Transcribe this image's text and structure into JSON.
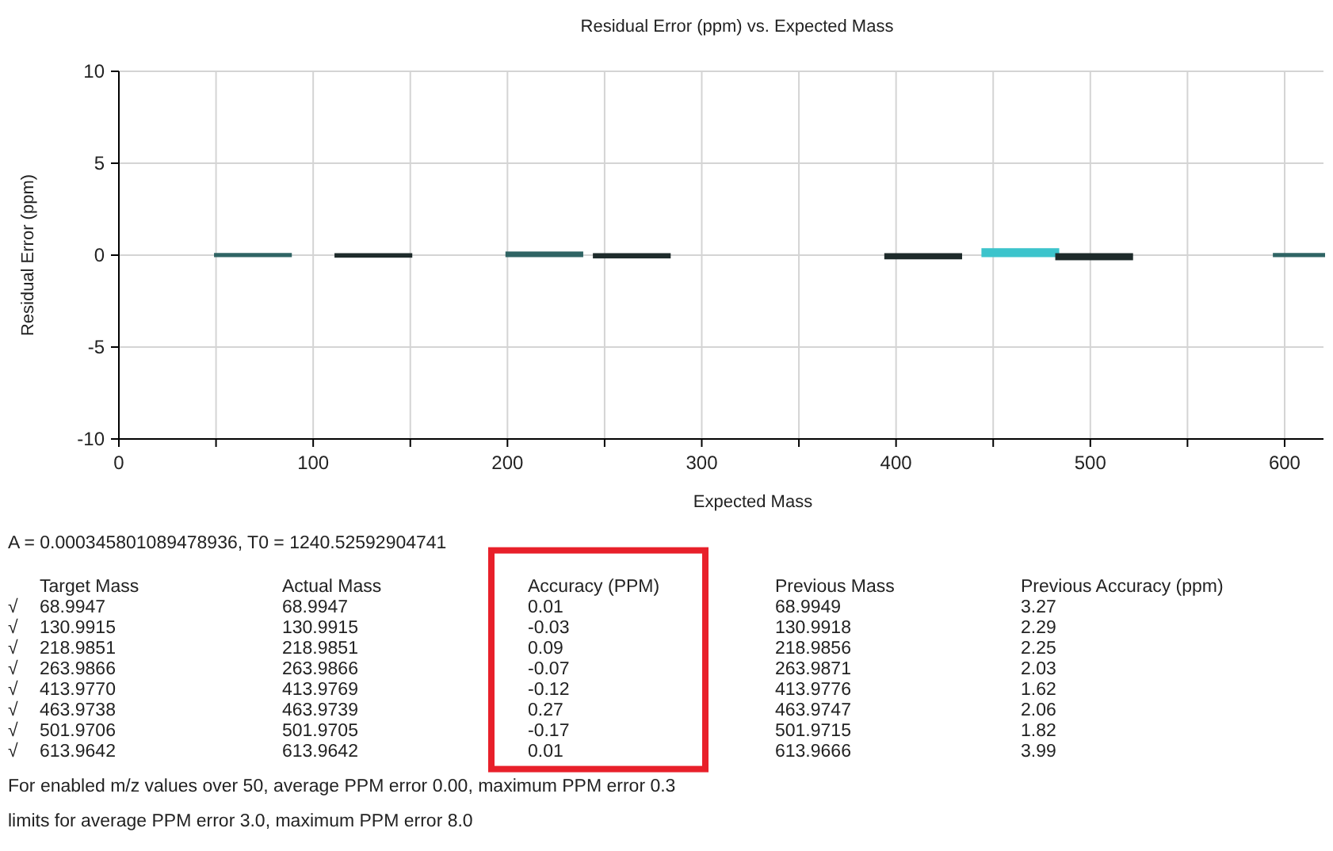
{
  "chart_data": {
    "type": "bar",
    "title": "Residual Error (ppm) vs. Expected Mass",
    "xlabel": "Expected Mass",
    "ylabel": "Residual Error (ppm)",
    "x": [
      68.9947,
      130.9915,
      218.9851,
      263.9866,
      413.977,
      463.9738,
      501.9706,
      613.9642
    ],
    "values": [
      0.01,
      -0.03,
      0.09,
      -0.07,
      -0.12,
      0.27,
      -0.17,
      0.01
    ],
    "colors": [
      "#2f6464",
      "#1e2b2b",
      "#2f6464",
      "#1e2b2b",
      "#1e2b2b",
      "#3cc4cc",
      "#1e2b2b",
      "#2f6464"
    ],
    "xlim": [
      0,
      620
    ],
    "xticks": [
      0,
      {
        "value": 50,
        "label": null
      },
      100,
      {
        "value": 150,
        "label": null
      },
      200,
      {
        "value": 250,
        "label": null
      },
      300,
      {
        "value": 350,
        "label": null
      },
      400,
      {
        "value": 450,
        "label": null
      },
      500,
      {
        "value": 550,
        "label": null
      },
      600
    ],
    "ylim": [
      -10,
      10
    ],
    "yticks": [
      -10,
      -5,
      0,
      5,
      10
    ],
    "grid": true,
    "annotations": [
      "A = 0.000345801089478936, T0 = 1240.52592904741",
      "\tTarget Mass\tActual Mass\tAccuracy (PPM)\tPrevious Mass\tPrevious Accuracy (ppm)",
      "√\t68.9947\t68.9947\t0.01\t68.9949\t3.27",
      "√\t130.9915\t130.9915\t-0.03\t130.9918\t2.29",
      "√\t218.9851\t218.9851\t0.09\t218.9856\t2.25",
      "√\t263.9866\t263.9866\t-0.07\t263.9871\t2.03",
      "√\t413.9770\t413.9769\t-0.12\t413.9776\t1.62",
      "√\t463.9738\t463.9739\t0.27\t463.9747\t2.06",
      "√\t501.9706\t501.9705\t-0.17\t501.9715\t1.82",
      "√\t613.9642\t613.9642\t0.01\t613.9666\t3.99",
      "For enabled m/z values over 50, average PPM error 0.00, maximum PPM error 0.3",
      "limits for average PPM error 3.0, maximum PPM error 8.0"
    ]
  }
}
